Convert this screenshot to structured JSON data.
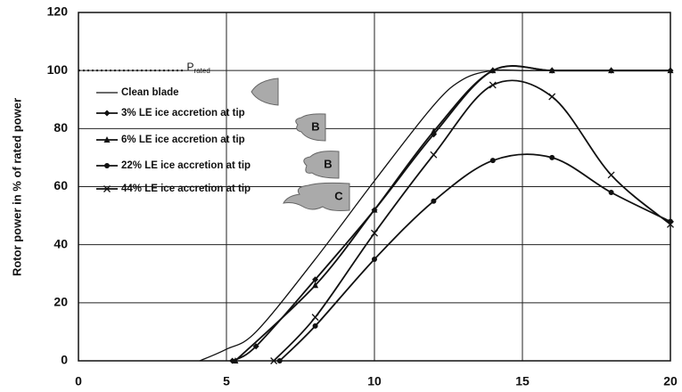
{
  "chart_data": {
    "type": "line",
    "y_label": "Rotor power in % of rated power",
    "xlim": [
      0,
      20
    ],
    "xticks": [
      0,
      5,
      10,
      15,
      20
    ],
    "ylim": [
      0,
      120
    ],
    "yticks": [
      0,
      20,
      40,
      60,
      80,
      100,
      120
    ],
    "grid": true,
    "rated": {
      "label": "P",
      "subscript": "rated",
      "y": 100,
      "x_end": 3.6
    },
    "icon_labels": [
      "B",
      "B",
      "C"
    ],
    "series": [
      {
        "name": "Clean blade",
        "color": "#111111",
        "marker": "none",
        "x": [
          4.1,
          5,
          6,
          8,
          10,
          12,
          13,
          14,
          15,
          16,
          18,
          20
        ],
        "values": [
          0,
          4,
          10,
          35,
          62,
          88,
          97,
          100,
          100,
          100,
          100,
          100
        ]
      },
      {
        "name": "3% LE ice accretion at tip",
        "color": "#111111",
        "marker": "diamond",
        "x": [
          5.2,
          6,
          8,
          10,
          12,
          14,
          16,
          18,
          20
        ],
        "values": [
          0,
          5,
          28,
          52,
          78,
          100,
          100,
          100,
          100
        ]
      },
      {
        "name": "6% LE ice accretion at tip",
        "color": "#111111",
        "marker": "triangle",
        "x": [
          5.3,
          8,
          10,
          12,
          14,
          16,
          18,
          20
        ],
        "values": [
          0,
          26,
          52,
          79,
          100,
          100,
          100,
          100
        ]
      },
      {
        "name": "22% LE ice accretion at tip",
        "color": "#111111",
        "marker": "circle",
        "x": [
          6.8,
          8,
          10,
          12,
          14,
          16,
          18,
          20
        ],
        "values": [
          0,
          12,
          35,
          55,
          69,
          70,
          58,
          48
        ]
      },
      {
        "name": "44% LE ice accretion at tip",
        "color": "#111111",
        "marker": "x",
        "x": [
          6.6,
          8,
          10,
          12,
          14,
          16,
          18,
          20
        ],
        "values": [
          0,
          15,
          44,
          71,
          95,
          91,
          64,
          47
        ]
      }
    ]
  }
}
